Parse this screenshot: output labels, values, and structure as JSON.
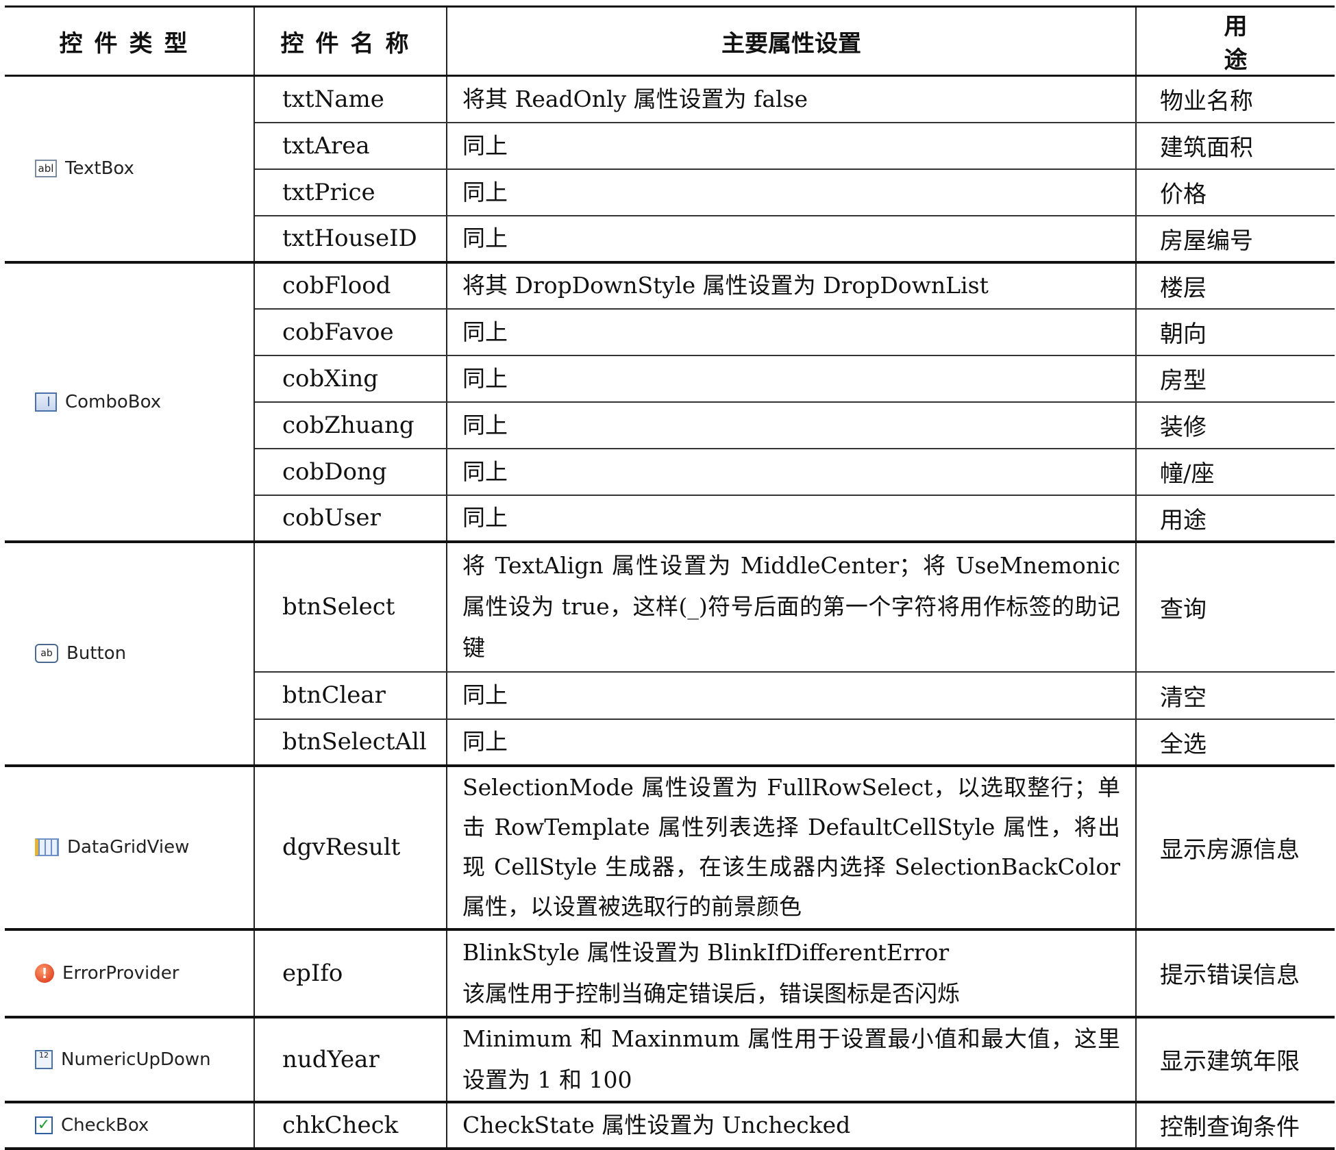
{
  "headers": {
    "type": "控件类型",
    "name": "控件名称",
    "props": "主要属性设置",
    "use": "用途"
  },
  "groups": {
    "textbox": {
      "type": "TextBox",
      "icon": "textbox-icon",
      "icon_text": "abl",
      "rows": [
        {
          "name": "txtName",
          "desc": "将其 ReadOnly 属性设置为 false",
          "use": "物业名称"
        },
        {
          "name": "txtArea",
          "desc": "同上",
          "use": "建筑面积"
        },
        {
          "name": "txtPrice",
          "desc": "同上",
          "use": "价格"
        },
        {
          "name": "txtHouseID",
          "desc": "同上",
          "use": "房屋编号"
        }
      ]
    },
    "combobox": {
      "type": "ComboBox",
      "icon": "combobox-icon",
      "rows": [
        {
          "name": "cobFlood",
          "desc": "将其 DropDownStyle 属性设置为 DropDownList",
          "use": "楼层"
        },
        {
          "name": "cobFavoe",
          "desc": "同上",
          "use": "朝向"
        },
        {
          "name": "cobXing",
          "desc": "同上",
          "use": "房型"
        },
        {
          "name": "cobZhuang",
          "desc": "同上",
          "use": "装修"
        },
        {
          "name": "cobDong",
          "desc": "同上",
          "use": "幢/座"
        },
        {
          "name": "cobUser",
          "desc": "同上",
          "use": "用途"
        }
      ]
    },
    "button": {
      "type": "Button",
      "icon": "button-icon",
      "icon_text": "ab",
      "rows": [
        {
          "name": "btnSelect",
          "desc": "将 TextAlign 属性设置为 MiddleCenter；将 UseMnemonic 属性设为 true，这样(_)符号后面的第一个字符将用作标签的助记键",
          "use": "查询"
        },
        {
          "name": "btnClear",
          "desc": "同上",
          "use": "清空"
        },
        {
          "name": "btnSelectAll",
          "desc": "同上",
          "use": "全选"
        }
      ]
    },
    "datagridview": {
      "type": "DataGridView",
      "icon": "datagridview-icon",
      "rows": [
        {
          "name": "dgvResult",
          "desc": "SelectionMode 属性设置为 FullRowSelect，以选取整行；单击 RowTemplate 属性列表选择 DefaultCellStyle 属性，将出现 CellStyle 生成器，在该生成器内选择 SelectionBackColor 属性，以设置被选取行的前景颜色",
          "use": "显示房源信息"
        }
      ]
    },
    "errorprovider": {
      "type": "ErrorProvider",
      "icon": "error-icon",
      "icon_text": "!",
      "rows": [
        {
          "name": "epIfo",
          "desc": "BlinkStyle 属性设置为 BlinkIfDifferentError",
          "desc2": "该属性用于控制当确定错误后，错误图标是否闪烁",
          "use": "提示错误信息"
        }
      ]
    },
    "numericupdown": {
      "type": "NumericUpDown",
      "icon": "numericupdown-icon",
      "icon_text": "12",
      "rows": [
        {
          "name": "nudYear",
          "desc": "Minimum 和 Maxinmum 属性用于设置最小值和最大值，这里设置为 1 和 100",
          "use": "显示建筑年限"
        }
      ]
    },
    "checkbox": {
      "type": "CheckBox",
      "icon": "checkbox-icon",
      "icon_text": "✓",
      "rows": [
        {
          "name": "chkCheck",
          "desc": "CheckState 属性设置为 Unchecked",
          "use": "控制查询条件"
        }
      ]
    }
  }
}
